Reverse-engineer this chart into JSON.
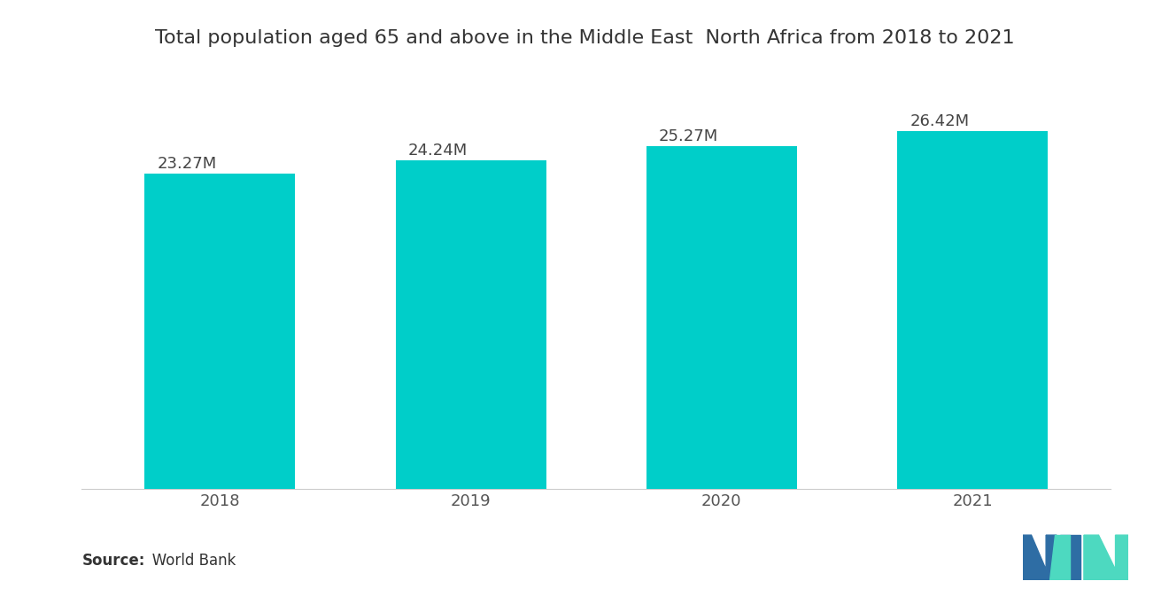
{
  "title": "Total population aged 65 and above in the Middle East  North Africa from 2018 to 2021",
  "categories": [
    "2018",
    "2019",
    "2020",
    "2021"
  ],
  "values": [
    23.27,
    24.24,
    25.27,
    26.42
  ],
  "labels": [
    "23.27M",
    "24.24M",
    "25.27M",
    "26.42M"
  ],
  "bar_color": "#00CEC9",
  "background_color": "#ffffff",
  "source_bold": "Source:",
  "source_rest": "   World Bank",
  "title_fontsize": 16,
  "label_fontsize": 13,
  "tick_fontsize": 13,
  "source_fontsize": 12,
  "ylim": [
    0,
    30
  ],
  "bar_width": 0.6,
  "logo_blue": "#2E6DA4",
  "logo_teal": "#4DD9C0"
}
